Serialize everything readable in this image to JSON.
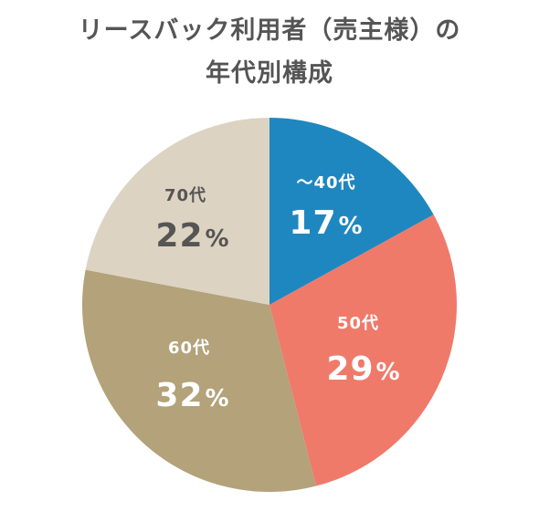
{
  "chart_data": {
    "type": "pie",
    "title_lines": [
      "リースバック利用者（売主様）の",
      "年代別構成"
    ],
    "categories": [
      "～40代",
      "50代",
      "60代",
      "70代"
    ],
    "values": [
      17,
      29,
      32,
      22
    ],
    "value_suffix": "%",
    "start": "12 o'clock",
    "direction": "clockwise",
    "colors": [
      "#1f87c0",
      "#ef7a6a",
      "#b3a27a",
      "#ddd3c2"
    ],
    "label_colors": [
      "#ffffff",
      "#ffffff",
      "#ffffff",
      "#555555"
    ]
  }
}
